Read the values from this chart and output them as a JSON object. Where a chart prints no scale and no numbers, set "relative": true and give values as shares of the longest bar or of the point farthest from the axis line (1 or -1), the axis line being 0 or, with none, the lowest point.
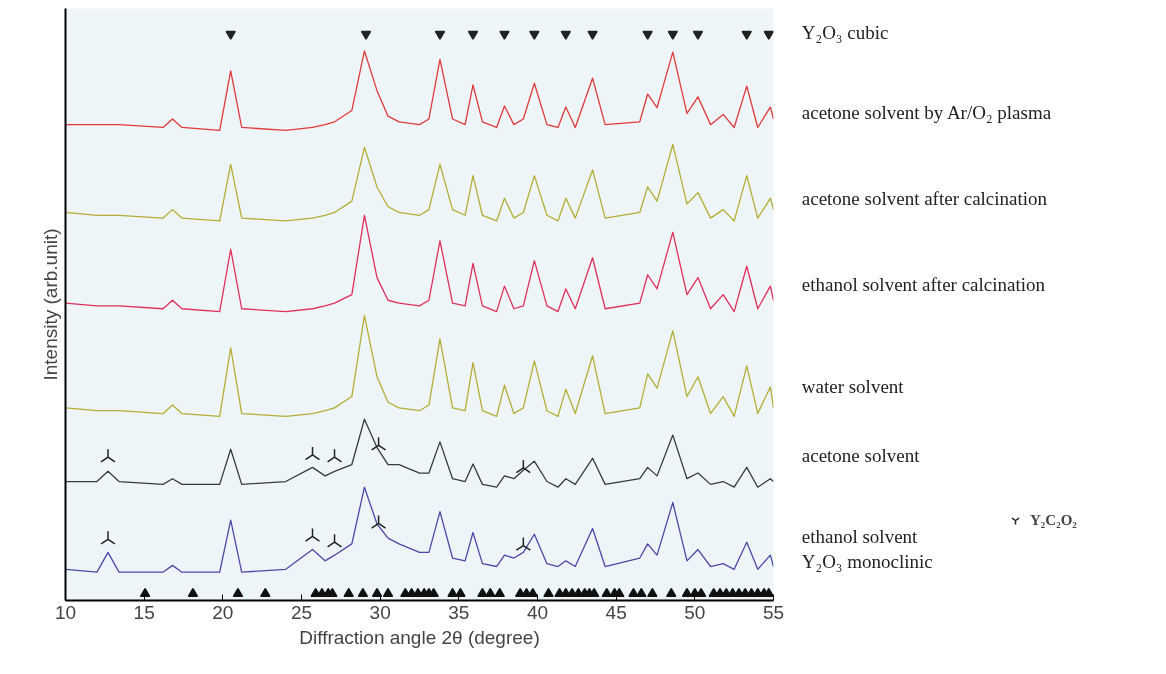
{
  "chart_data": {
    "type": "line",
    "relative": true,
    "xlabel": "Diffraction angle 2θ (degree)",
    "ylabel": "Intensity (arb.unit)",
    "xlim": [
      10,
      55
    ],
    "xticks": [
      10,
      15,
      20,
      25,
      30,
      35,
      40,
      45,
      50,
      55
    ],
    "tick_labels": "x",
    "grid": false,
    "legend": "right",
    "x": [
      10,
      12,
      12.7,
      13.4,
      16.2,
      16.8,
      17.4,
      19.8,
      20.5,
      21.2,
      24,
      25.7,
      26.5,
      27.1,
      28.2,
      29,
      29.8,
      30.5,
      31.2,
      32.5,
      33.1,
      33.8,
      34.6,
      35.4,
      35.9,
      36.5,
      37.4,
      37.9,
      38.5,
      39.1,
      39.8,
      40.6,
      41.3,
      41.8,
      42.4,
      43.5,
      44.3,
      46.5,
      47,
      47.6,
      48.6,
      49.5,
      50.2,
      51,
      51.8,
      52.5,
      53.3,
      54,
      54.8,
      55
    ],
    "series": [
      {
        "name": "Y₂O₃ cubic",
        "type": "scatter",
        "marker": "triangle_down",
        "color": "#222222",
        "x": [
          20.5,
          29.1,
          33.8,
          35.9,
          37.9,
          39.8,
          41.8,
          43.5,
          47.0,
          48.6,
          50.2,
          53.3,
          54.7
        ],
        "values": [
          1.0,
          1.0,
          1.0,
          1.0,
          1.0,
          1.0,
          1.0,
          1.0,
          1.0,
          1.0,
          1.0,
          1.0,
          1.0
        ]
      },
      {
        "name": "acetone solvent by Ar/O₂ plasma",
        "color": "#e03a3a",
        "values": [
          0.84,
          0.84,
          0.84,
          0.84,
          0.835,
          0.85,
          0.835,
          0.83,
          0.935,
          0.835,
          0.83,
          0.835,
          0.84,
          0.845,
          0.865,
          0.97,
          0.9,
          0.855,
          0.845,
          0.84,
          0.85,
          0.955,
          0.85,
          0.84,
          0.91,
          0.845,
          0.835,
          0.873,
          0.84,
          0.85,
          0.913,
          0.84,
          0.835,
          0.871,
          0.835,
          0.922,
          0.84,
          0.845,
          0.894,
          0.87,
          0.968,
          0.86,
          0.889,
          0.84,
          0.858,
          0.835,
          0.908,
          0.835,
          0.871,
          0.85
        ]
      },
      {
        "name": "acetone solvent after calcination",
        "color": "#b5ad35",
        "values": [
          0.685,
          0.68,
          0.68,
          0.68,
          0.675,
          0.69,
          0.675,
          0.67,
          0.77,
          0.675,
          0.67,
          0.675,
          0.68,
          0.685,
          0.705,
          0.8,
          0.73,
          0.695,
          0.685,
          0.68,
          0.69,
          0.77,
          0.69,
          0.68,
          0.75,
          0.68,
          0.67,
          0.71,
          0.675,
          0.685,
          0.75,
          0.68,
          0.67,
          0.71,
          0.675,
          0.76,
          0.675,
          0.685,
          0.73,
          0.705,
          0.805,
          0.7,
          0.72,
          0.675,
          0.69,
          0.67,
          0.75,
          0.675,
          0.71,
          0.69
        ]
      },
      {
        "name": "ethanol solvent after calcination",
        "color": "#e0305a",
        "values": [
          0.525,
          0.52,
          0.52,
          0.52,
          0.515,
          0.53,
          0.515,
          0.51,
          0.62,
          0.515,
          0.51,
          0.515,
          0.52,
          0.525,
          0.54,
          0.68,
          0.57,
          0.53,
          0.525,
          0.52,
          0.53,
          0.635,
          0.525,
          0.52,
          0.595,
          0.52,
          0.51,
          0.555,
          0.515,
          0.52,
          0.6,
          0.52,
          0.51,
          0.55,
          0.515,
          0.605,
          0.515,
          0.525,
          0.575,
          0.55,
          0.65,
          0.54,
          0.57,
          0.515,
          0.54,
          0.51,
          0.59,
          0.515,
          0.555,
          0.53
        ]
      },
      {
        "name": "water solvent",
        "color": "#b5ad35",
        "values": [
          0.34,
          0.335,
          0.335,
          0.335,
          0.33,
          0.345,
          0.33,
          0.325,
          0.446,
          0.33,
          0.325,
          0.33,
          0.335,
          0.34,
          0.36,
          0.503,
          0.395,
          0.35,
          0.34,
          0.335,
          0.345,
          0.462,
          0.34,
          0.335,
          0.42,
          0.335,
          0.325,
          0.38,
          0.33,
          0.34,
          0.423,
          0.335,
          0.325,
          0.373,
          0.33,
          0.432,
          0.33,
          0.34,
          0.4,
          0.375,
          0.476,
          0.36,
          0.395,
          0.33,
          0.36,
          0.325,
          0.414,
          0.33,
          0.377,
          0.34
        ]
      },
      {
        "name": "acetone solvent",
        "color": "#3a3a3a",
        "values": [
          0.21,
          0.21,
          0.228,
          0.21,
          0.205,
          0.215,
          0.205,
          0.205,
          0.267,
          0.205,
          0.21,
          0.235,
          0.22,
          0.228,
          0.24,
          0.32,
          0.27,
          0.24,
          0.24,
          0.225,
          0.225,
          0.28,
          0.215,
          0.21,
          0.241,
          0.205,
          0.2,
          0.22,
          0.215,
          0.23,
          0.246,
          0.21,
          0.2,
          0.215,
          0.205,
          0.251,
          0.205,
          0.215,
          0.235,
          0.22,
          0.292,
          0.215,
          0.225,
          0.205,
          0.21,
          0.2,
          0.235,
          0.2,
          0.215,
          0.21
        ]
      },
      {
        "name": "ethanol solvent",
        "color": "#4a4aa8",
        "values": [
          0.055,
          0.05,
          0.085,
          0.05,
          0.05,
          0.062,
          0.05,
          0.05,
          0.142,
          0.05,
          0.055,
          0.09,
          0.07,
          0.08,
          0.1,
          0.2,
          0.135,
          0.11,
          0.1,
          0.085,
          0.085,
          0.157,
          0.075,
          0.07,
          0.12,
          0.065,
          0.06,
          0.08,
          0.075,
          0.085,
          0.117,
          0.065,
          0.06,
          0.07,
          0.06,
          0.127,
          0.06,
          0.075,
          0.1,
          0.08,
          0.173,
          0.07,
          0.09,
          0.06,
          0.065,
          0.055,
          0.103,
          0.055,
          0.08,
          0.06
        ]
      },
      {
        "name": "Y₂O₃ monoclinic",
        "type": "scatter",
        "marker": "triangle",
        "color": "#111111",
        "x": [
          15.06,
          18.1,
          20.96,
          22.7,
          25.9,
          26.3,
          26.7,
          26.96,
          28.0,
          28.9,
          29.8,
          30.5,
          31.6,
          32.0,
          32.4,
          32.8,
          33.1,
          33.4,
          34.6,
          35.1,
          36.5,
          37.0,
          37.6,
          38.9,
          39.3,
          39.7,
          40.7,
          41.4,
          41.8,
          42.2,
          42.6,
          43.0,
          43.3,
          43.6,
          44.4,
          44.9,
          45.2,
          46.1,
          46.6,
          47.3,
          48.5,
          49.5,
          50.0,
          50.4,
          51.2,
          51.6,
          52.0,
          52.4,
          52.8,
          53.2,
          53.6,
          54.0,
          54.4,
          54.7
        ],
        "values": [
          0.012,
          0.012,
          0.012,
          0.012,
          0.012,
          0.012,
          0.012,
          0.012,
          0.012,
          0.012,
          0.012,
          0.012,
          0.012,
          0.012,
          0.012,
          0.012,
          0.012,
          0.012,
          0.012,
          0.012,
          0.012,
          0.012,
          0.012,
          0.012,
          0.012,
          0.012,
          0.012,
          0.012,
          0.012,
          0.012,
          0.012,
          0.012,
          0.012,
          0.012,
          0.012,
          0.012,
          0.012,
          0.012,
          0.012,
          0.012,
          0.012,
          0.012,
          0.012,
          0.012,
          0.012,
          0.012,
          0.012,
          0.012,
          0.012,
          0.012,
          0.012,
          0.012,
          0.012,
          0.012
        ]
      },
      {
        "name": "Y₂C₂O₂",
        "type": "scatter",
        "marker": "cross",
        "color": "#222222",
        "x": [
          12.7,
          25.7,
          27.1,
          29.9,
          39.1,
          12.7,
          25.7,
          27.1,
          29.9,
          39.1
        ],
        "values": [
          0.253,
          0.257,
          0.253,
          0.274,
          0.234,
          0.108,
          0.113,
          0.103,
          0.136,
          0.097
        ]
      }
    ]
  }
}
